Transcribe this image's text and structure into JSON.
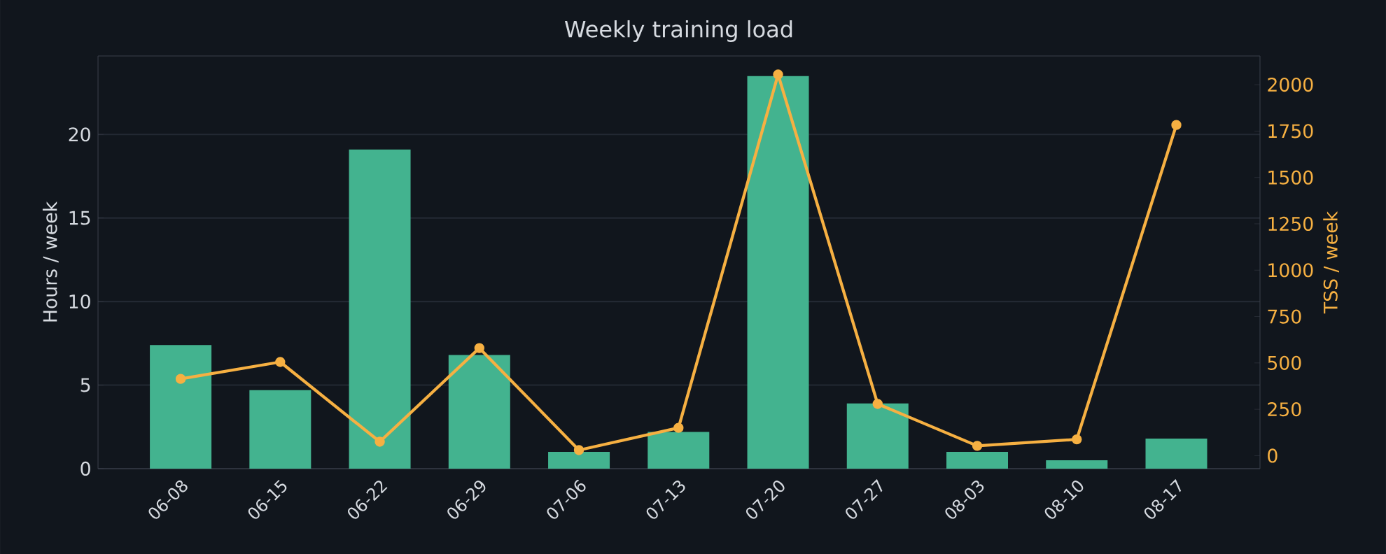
{
  "chart_data": {
    "type": "bar",
    "title": "Weekly training load",
    "ylabel": "Hours / week",
    "y2label": "TSS / week",
    "categories": [
      "06-08",
      "06-15",
      "06-22",
      "06-29",
      "07-06",
      "07-13",
      "07-20",
      "07-27",
      "08-03",
      "08-10",
      "08-17"
    ],
    "series": [
      {
        "color": "#43b38f",
        "values": [
          7.4,
          4.7,
          19.1,
          6.8,
          1.0,
          2.2,
          23.5,
          3.9,
          1.0,
          0.5,
          1.8
        ]
      },
      {
        "type": "line",
        "axis": "y2",
        "color": "#f6b042",
        "marker": "circle",
        "values": [
          414,
          505,
          75,
          580,
          30,
          150,
          2055,
          279,
          53,
          88,
          1783
        ]
      }
    ],
    "ylim": [
      0,
      24.7
    ],
    "yticks": [
      0,
      5,
      10,
      15,
      20
    ],
    "y2lim": [
      -70,
      2155
    ],
    "y2ticks": [
      0,
      250,
      500,
      750,
      1000,
      1250,
      1500,
      1750,
      2000
    ],
    "grid": "y",
    "legend": false
  }
}
